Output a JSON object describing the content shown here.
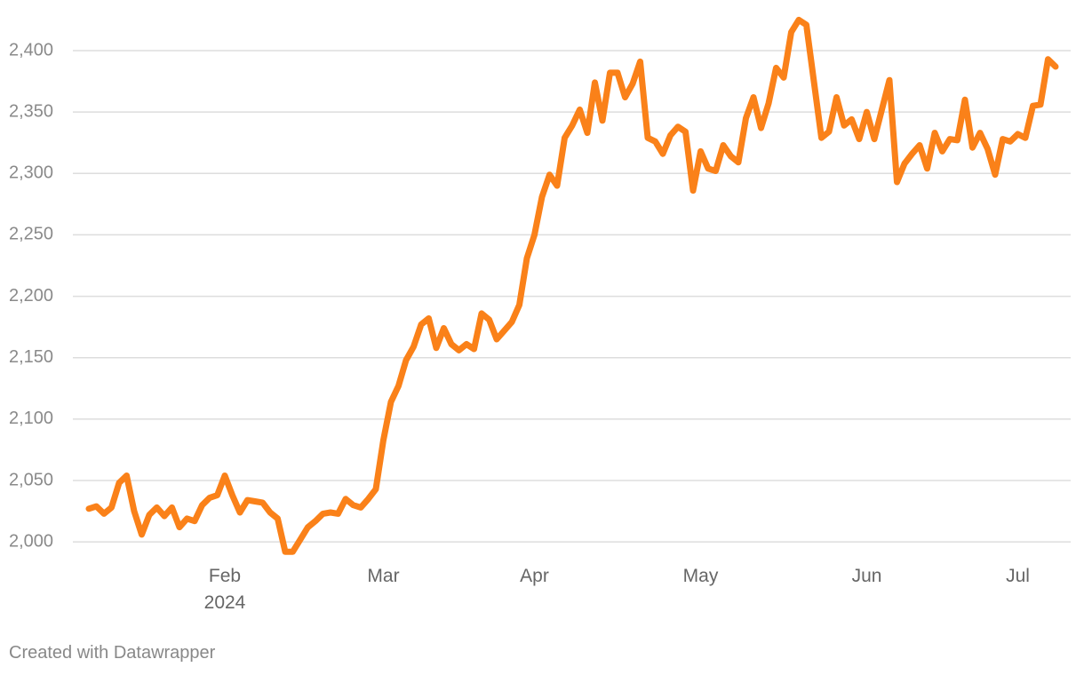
{
  "chart_data": {
    "type": "line",
    "categories": [
      null,
      null,
      null,
      null,
      null,
      null,
      null,
      null,
      null,
      null,
      null,
      null,
      null,
      null,
      null,
      null,
      null,
      null,
      "Feb\n2024",
      null,
      null,
      null,
      null,
      null,
      null,
      null,
      null,
      null,
      null,
      null,
      null,
      null,
      null,
      null,
      null,
      null,
      null,
      null,
      null,
      "Mar",
      null,
      null,
      null,
      null,
      null,
      null,
      null,
      null,
      null,
      null,
      null,
      null,
      null,
      null,
      null,
      null,
      null,
      null,
      null,
      "Apr",
      null,
      null,
      null,
      null,
      null,
      null,
      null,
      null,
      null,
      null,
      null,
      null,
      null,
      null,
      null,
      null,
      null,
      null,
      null,
      null,
      null,
      "May",
      null,
      null,
      null,
      null,
      null,
      null,
      null,
      null,
      null,
      null,
      null,
      null,
      null,
      null,
      null,
      null,
      null,
      null,
      null,
      null,
      null,
      "Jun",
      null,
      null,
      null,
      null,
      null,
      null,
      null,
      null,
      null,
      null,
      null,
      null,
      null,
      null,
      null,
      null,
      null,
      null,
      null,
      "Jul",
      null,
      null,
      null,
      null,
      null
    ],
    "values": [
      2027,
      2029,
      2023,
      2028,
      2048,
      2054,
      2025,
      2006,
      2022,
      2028,
      2021,
      2028,
      2012,
      2019,
      2017,
      2030,
      2036,
      2038,
      2054,
      2038,
      2024,
      2034,
      2033,
      2032,
      2024,
      2019,
      1992,
      1992,
      2002,
      2012,
      2017,
      2023,
      2024,
      2023,
      2035,
      2030,
      2028,
      2035,
      2043,
      2083,
      2114,
      2127,
      2148,
      2159,
      2177,
      2182,
      2158,
      2174,
      2161,
      2156,
      2161,
      2157,
      2186,
      2181,
      2165,
      2172,
      2179,
      2193,
      2231,
      2250,
      2281,
      2299,
      2290,
      2329,
      2339,
      2352,
      2333,
      2374,
      2343,
      2382,
      2382,
      2362,
      2373,
      2391,
      2329,
      2326,
      2316,
      2331,
      2338,
      2334,
      2286,
      2318,
      2304,
      2302,
      2323,
      2314,
      2309,
      2345,
      2362,
      2337,
      2357,
      2386,
      2378,
      2415,
      2425,
      2421,
      2375,
      2329,
      2334,
      2362,
      2339,
      2344,
      2328,
      2350,
      2328,
      2352,
      2376,
      2293,
      2308,
      2316,
      2323,
      2304,
      2333,
      2318,
      2328,
      2327,
      2360,
      2321,
      2333,
      2320,
      2299,
      2328,
      2326,
      2332,
      2329,
      2355,
      2356,
      2393,
      2387
    ],
    "color": "#fa8119",
    "ylim": [
      1990,
      2430
    ],
    "yticks": [
      {
        "value": 2000,
        "label": "2,000"
      },
      {
        "value": 2050,
        "label": "2,050"
      },
      {
        "value": 2100,
        "label": "2,100"
      },
      {
        "value": 2150,
        "label": "2,150"
      },
      {
        "value": 2200,
        "label": "2,200"
      },
      {
        "value": 2250,
        "label": "2,250"
      },
      {
        "value": 2300,
        "label": "2,300"
      },
      {
        "value": 2350,
        "label": "2,350"
      },
      {
        "value": 2400,
        "label": "2,400"
      }
    ],
    "grid": true
  },
  "credit": "Created with Datawrapper"
}
